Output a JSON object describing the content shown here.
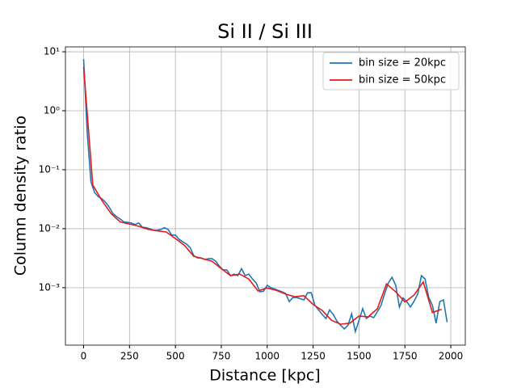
{
  "chart_data": {
    "type": "line",
    "title": "Si II / Si III",
    "xlabel": "Distance [kpc]",
    "ylabel": "Column density ratio",
    "xlim": [
      -99,
      2079
    ],
    "xticks": [
      0,
      250,
      500,
      750,
      1000,
      1250,
      1500,
      1750,
      2000
    ],
    "ylim": [
      0.000106,
      12.1
    ],
    "ylog": true,
    "yticks": [
      {
        "value": 0.001,
        "label": "10⁻³"
      },
      {
        "value": 0.01,
        "label": "10⁻²"
      },
      {
        "value": 0.1,
        "label": "10⁻¹"
      },
      {
        "value": 1,
        "label": "10⁰"
      },
      {
        "value": 10,
        "label": "10¹"
      }
    ],
    "grid": true,
    "legend": "upper right",
    "series": [
      {
        "name": "bin size = 20kpc",
        "color": "#1f77b4",
        "x": [
          0,
          20,
          40,
          60,
          80,
          100,
          120,
          140,
          160,
          180,
          200,
          220,
          240,
          260,
          280,
          300,
          320,
          340,
          360,
          380,
          400,
          420,
          440,
          460,
          480,
          500,
          520,
          540,
          560,
          580,
          600,
          620,
          640,
          660,
          680,
          700,
          720,
          740,
          760,
          780,
          800,
          820,
          840,
          860,
          880,
          900,
          920,
          940,
          960,
          980,
          1000,
          1020,
          1040,
          1060,
          1080,
          1100,
          1120,
          1140,
          1160,
          1180,
          1200,
          1220,
          1240,
          1260,
          1280,
          1300,
          1320,
          1340,
          1360,
          1380,
          1400,
          1420,
          1440,
          1460,
          1480,
          1500,
          1520,
          1540,
          1560,
          1580,
          1600,
          1620,
          1640,
          1660,
          1680,
          1700,
          1720,
          1740,
          1760,
          1780,
          1800,
          1820,
          1840,
          1860,
          1880,
          1900,
          1920,
          1940,
          1960,
          1980
        ],
        "values": [
          7.5,
          0.41,
          0.062,
          0.041,
          0.035,
          0.032,
          0.028,
          0.023,
          0.018,
          0.016,
          0.0145,
          0.013,
          0.0128,
          0.0125,
          0.0118,
          0.0125,
          0.0106,
          0.0104,
          0.01,
          0.0094,
          0.0094,
          0.0097,
          0.0104,
          0.0097,
          0.0078,
          0.0078,
          0.0066,
          0.006,
          0.0055,
          0.0048,
          0.0035,
          0.0032,
          0.0032,
          0.003,
          0.0031,
          0.0031,
          0.0028,
          0.0023,
          0.002,
          0.002,
          0.0016,
          0.0017,
          0.0016,
          0.0021,
          0.0016,
          0.0017,
          0.0014,
          0.0012,
          0.00085,
          0.00087,
          0.0011,
          0.001,
          0.00095,
          0.0009,
          0.00085,
          0.0008,
          0.00058,
          0.00068,
          0.00068,
          0.00065,
          0.00062,
          0.00082,
          0.00082,
          0.0005,
          0.00042,
          0.00035,
          0.0003,
          0.00042,
          0.00035,
          0.00027,
          0.00023,
          0.0002,
          0.00023,
          0.00036,
          0.00018,
          0.00028,
          0.00044,
          0.0003,
          0.00033,
          0.00031,
          0.00039,
          0.0005,
          0.0008,
          0.0012,
          0.0015,
          0.0011,
          0.00047,
          0.00067,
          0.00058,
          0.00047,
          0.00059,
          0.00078,
          0.0016,
          0.0014,
          0.00068,
          0.0005,
          0.00025,
          0.00058,
          0.00062,
          0.00026
        ]
      },
      {
        "name": "bin size = 50kpc",
        "color": "#e41a1c",
        "x": [
          0,
          50,
          100,
          150,
          200,
          250,
          300,
          350,
          400,
          450,
          500,
          550,
          600,
          650,
          700,
          750,
          800,
          850,
          900,
          950,
          1000,
          1050,
          1100,
          1150,
          1200,
          1250,
          1300,
          1350,
          1400,
          1450,
          1500,
          1550,
          1600,
          1650,
          1700,
          1750,
          1800,
          1850,
          1900,
          1950
        ],
        "values": [
          5.5,
          0.055,
          0.03,
          0.018,
          0.013,
          0.012,
          0.011,
          0.0098,
          0.0092,
          0.0088,
          0.0068,
          0.0052,
          0.0034,
          0.0031,
          0.0028,
          0.0021,
          0.0016,
          0.0017,
          0.0014,
          0.00088,
          0.00099,
          0.0009,
          0.00078,
          0.0007,
          0.00073,
          0.00052,
          0.00041,
          0.00028,
          0.00024,
          0.00025,
          0.00033,
          0.00032,
          0.00044,
          0.00116,
          0.00085,
          0.00057,
          0.00075,
          0.00125,
          0.00038,
          0.00043
        ]
      }
    ]
  }
}
